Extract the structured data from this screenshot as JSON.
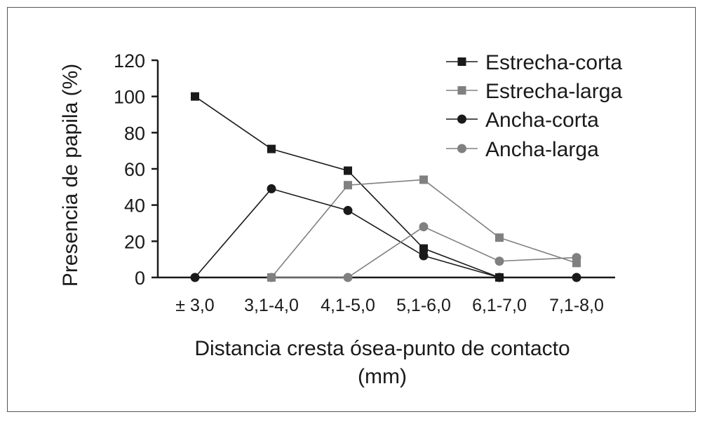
{
  "chart_data": {
    "type": "line",
    "title": "",
    "xlabel": "Distancia cresta ósea-punto de contacto (mm)",
    "xlabel_lines": [
      "Distancia cresta ósea-punto de contacto",
      "(mm)"
    ],
    "ylabel": "Presencia de papila (%)",
    "ylim": [
      0,
      120
    ],
    "yticks": [
      0,
      20,
      40,
      60,
      80,
      100,
      120
    ],
    "categories": [
      "± 3,0",
      "3,1-4,0",
      "4,1-5,0",
      "5,1-6,0",
      "6,1-7,0",
      "7,1-8,0"
    ],
    "grid": false,
    "legend_position": "top-right",
    "series": [
      {
        "name": "Estrecha-corta",
        "marker": "square",
        "color": "#1a1a1a",
        "values": [
          100,
          71,
          59,
          16,
          0,
          null
        ]
      },
      {
        "name": "Estrecha-larga",
        "marker": "square",
        "color": "#808080",
        "values": [
          null,
          0,
          51,
          54,
          22,
          8
        ]
      },
      {
        "name": "Ancha-corta",
        "marker": "circle",
        "color": "#1a1a1a",
        "values": [
          0,
          49,
          37,
          12,
          0,
          0
        ]
      },
      {
        "name": "Ancha-larga",
        "marker": "circle",
        "color": "#808080",
        "values": [
          null,
          0,
          0,
          28,
          9,
          11
        ]
      }
    ]
  }
}
